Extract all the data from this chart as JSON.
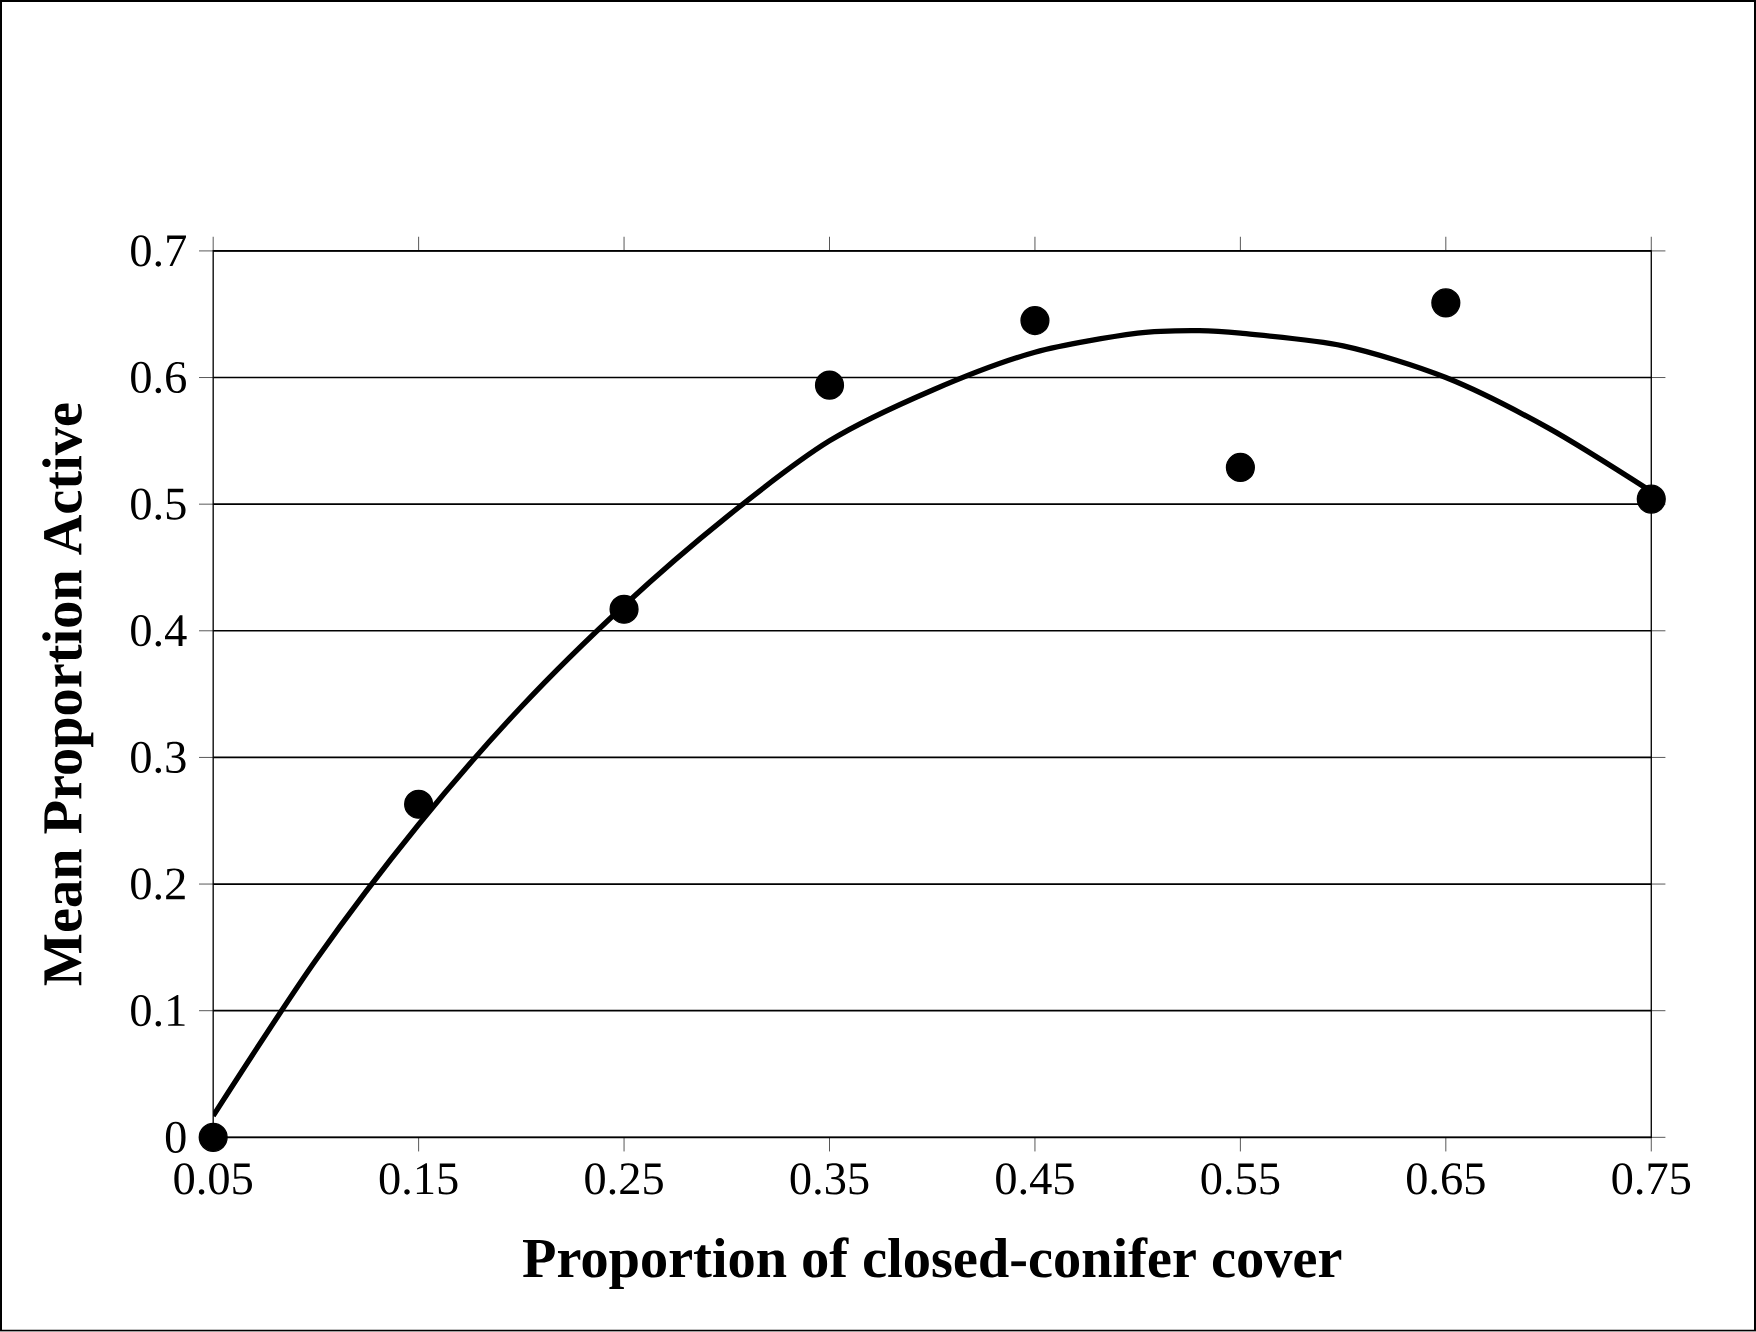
{
  "chart_data": {
    "type": "scatter",
    "xlabel": "Proportion of closed-conifer cover",
    "ylabel": "Mean Proportion Active",
    "xlim": [
      0.05,
      0.75
    ],
    "xticks": [
      0.05,
      0.15,
      0.25,
      0.35,
      0.45,
      0.55,
      0.65,
      0.75
    ],
    "ylim": [
      0,
      0.7
    ],
    "yticks": [
      0,
      0.1,
      0.2,
      0.3,
      0.4,
      0.5,
      0.6,
      0.7
    ],
    "grid": "y",
    "marker": "circle",
    "series": [
      {
        "color": "#000000",
        "x": [
          0.05,
          0.15,
          0.25,
          0.35,
          0.45,
          0.55,
          0.65,
          0.75
        ],
        "values": [
          0.0,
          0.263,
          0.417,
          0.594,
          0.645,
          0.529,
          0.659,
          0.504
        ]
      },
      {
        "type": "line",
        "color": "#000000",
        "line_style": "solid",
        "marker": "none",
        "x": [
          0.05,
          0.1,
          0.15,
          0.2,
          0.25,
          0.3,
          0.35,
          0.4,
          0.45,
          0.5,
          0.53,
          0.55,
          0.6,
          0.65,
          0.7,
          0.75
        ],
        "values": [
          0.017,
          0.14,
          0.247,
          0.34,
          0.42,
          0.49,
          0.55,
          0.59,
          0.62,
          0.635,
          0.637,
          0.635,
          0.625,
          0.6,
          0.56,
          0.51
        ]
      }
    ]
  }
}
